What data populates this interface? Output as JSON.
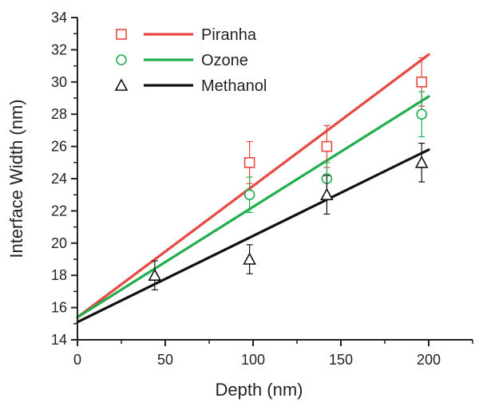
{
  "chart_data": {
    "type": "scatter",
    "title": "",
    "xlabel": "Depth (nm)",
    "ylabel": "Interface Width (nm)",
    "xlim": [
      0,
      225
    ],
    "ylim": [
      14,
      34
    ],
    "xticks": [
      "0",
      "50",
      "100",
      "150",
      "200"
    ],
    "yticks": [
      "14",
      "16",
      "18",
      "20",
      "22",
      "24",
      "26",
      "28",
      "30",
      "32",
      "34"
    ],
    "grid": false,
    "legend_position": "top-left",
    "series": [
      {
        "name": "Piranha",
        "color": "#e8483f",
        "marker": "square",
        "x": [
          98,
          142,
          196
        ],
        "y": [
          25,
          26,
          30
        ],
        "err": [
          1.3,
          1.3,
          1.5
        ],
        "fit": {
          "x": [
            0,
            200
          ],
          "y": [
            15.4,
            31.7
          ]
        }
      },
      {
        "name": "Ozone",
        "color": "#1fae4b",
        "marker": "circle",
        "x": [
          98,
          142,
          196
        ],
        "y": [
          23,
          24,
          28
        ],
        "err": [
          1.1,
          1.0,
          1.4
        ],
        "fit": {
          "x": [
            0,
            200
          ],
          "y": [
            15.4,
            29.1
          ]
        }
      },
      {
        "name": "Methanol",
        "color": "#111111",
        "marker": "triangle",
        "x": [
          44,
          98,
          142,
          196
        ],
        "y": [
          18,
          19,
          23,
          25
        ],
        "err": [
          0.9,
          0.9,
          1.2,
          1.2
        ],
        "fit": {
          "x": [
            0,
            200
          ],
          "y": [
            15.1,
            25.8
          ]
        }
      }
    ]
  }
}
